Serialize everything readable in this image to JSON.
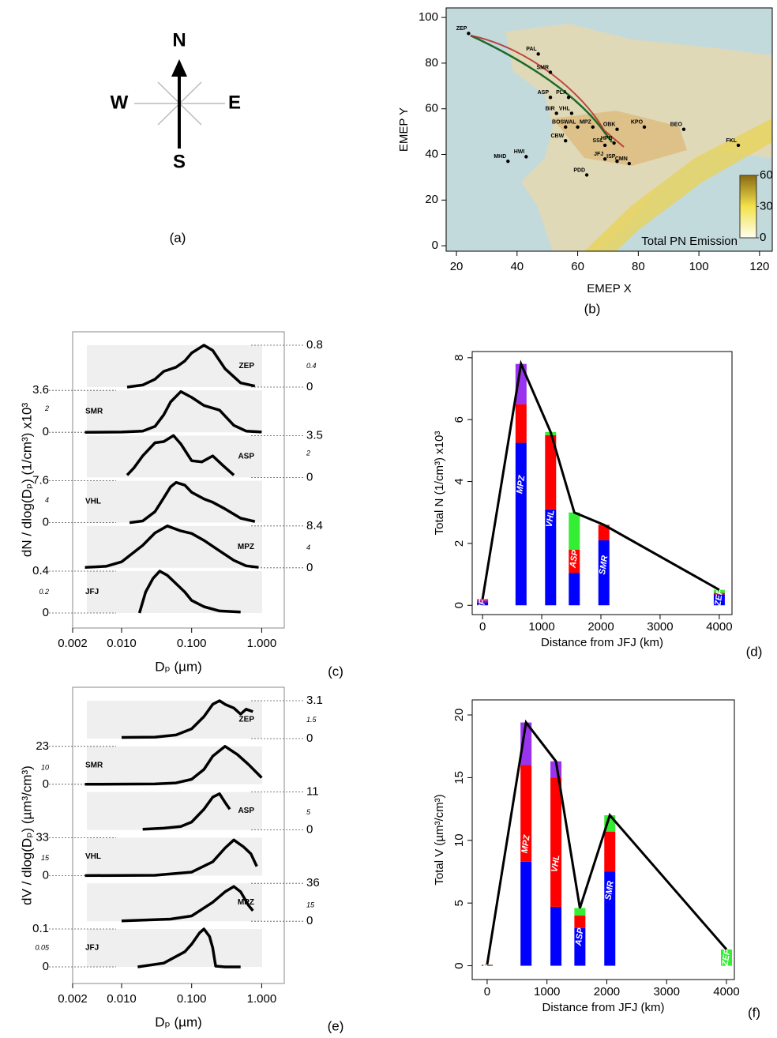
{
  "compass": {
    "north": "N",
    "south": "S",
    "west": "W",
    "east": "E"
  },
  "panel_labels": [
    "(a)",
    "(b)",
    "(c)",
    "(d)",
    "(e)",
    "(f)"
  ],
  "chart_data": [
    {
      "type": "scatter",
      "xlabel": "EMEP X",
      "ylabel": "EMEP Y",
      "xlim": [
        16.6,
        124.2
      ],
      "ylim": [
        -2.4,
        104.2
      ],
      "xticks": [
        20,
        40,
        60,
        80,
        100,
        120
      ],
      "yticks": [
        0,
        20,
        40,
        60,
        80,
        100
      ],
      "point_labels": [
        "ZEP",
        "PAL",
        "SMR",
        "ASP",
        "PLA",
        "BIR",
        "VHL",
        "BOS",
        "WAL",
        "MPZ",
        "OBK",
        "KPO",
        "BEO",
        "CBW",
        "SSL",
        "HPB",
        "JFJ",
        "ISP",
        "CMN",
        "PDD",
        "HWI",
        "MHD",
        "FKL"
      ],
      "x": [
        24,
        47,
        51,
        51,
        57,
        53,
        58,
        56,
        60,
        65,
        73,
        82,
        95,
        56,
        69,
        72,
        69,
        73,
        77,
        63,
        43,
        37,
        113
      ],
      "values": [
        93,
        84,
        76,
        65,
        65,
        58,
        58,
        52,
        52,
        52,
        51,
        52,
        51,
        46,
        44,
        45,
        38,
        37,
        36,
        31,
        39,
        37,
        44
      ],
      "colorbar": {
        "label": "Total PN Emission",
        "lim": [
          0,
          60
        ],
        "ticks": [
          0,
          30,
          60
        ]
      }
    },
    {
      "type": "ridge",
      "xlabel": "Dₚ (µm)",
      "ylabel": "dN / dlog(Dₚ)   (1/cm³) x10³",
      "xlim": [
        0.002,
        2.1
      ],
      "xticks": [
        0.002,
        {
          "value": 0.01,
          "label": "0.010"
        },
        {
          "value": 0.1,
          "label": "0.100"
        },
        {
          "value": 1,
          "label": "1.000"
        }
      ],
      "panels": [
        {
          "name": "ZEP",
          "side": "right",
          "ylim": [
            0,
            0.8
          ],
          "yticks": [
            0,
            0.4,
            0.8
          ],
          "x": [
            0.012,
            0.02,
            0.03,
            0.04,
            0.06,
            0.08,
            0.1,
            0.15,
            0.2,
            0.3,
            0.5,
            0.8
          ],
          "values": [
            0,
            0.04,
            0.15,
            0.3,
            0.38,
            0.5,
            0.65,
            0.8,
            0.7,
            0.35,
            0.08,
            0.02
          ]
        },
        {
          "name": "SMR",
          "side": "left",
          "ylim": [
            0,
            3.6
          ],
          "yticks": [
            0,
            2,
            3.6
          ],
          "x": [
            0.003,
            0.01,
            0.02,
            0.03,
            0.04,
            0.05,
            0.07,
            0.1,
            0.15,
            0.25,
            0.4,
            0.6,
            1.0
          ],
          "values": [
            0,
            0.02,
            0.1,
            0.5,
            1.5,
            2.6,
            3.5,
            3.0,
            2.3,
            1.9,
            0.6,
            0.1,
            0.02
          ]
        },
        {
          "name": "ASP",
          "side": "right",
          "ylim": [
            0,
            3.5
          ],
          "yticks": [
            0,
            2,
            3.5
          ],
          "x": [
            0.012,
            0.015,
            0.02,
            0.03,
            0.04,
            0.055,
            0.07,
            0.1,
            0.14,
            0.2,
            0.28,
            0.4
          ],
          "values": [
            0.2,
            0.8,
            1.8,
            2.9,
            3.0,
            3.5,
            2.8,
            1.4,
            1.3,
            1.8,
            1.0,
            0.2
          ]
        },
        {
          "name": "VHL",
          "side": "left",
          "ylim": [
            0,
            7.6
          ],
          "yticks": [
            0,
            4,
            7.6
          ],
          "x": [
            0.013,
            0.02,
            0.03,
            0.04,
            0.05,
            0.06,
            0.08,
            0.1,
            0.15,
            0.2,
            0.3,
            0.5,
            0.8
          ],
          "values": [
            0,
            0.3,
            2,
            4.5,
            6.5,
            7.3,
            6.8,
            5.5,
            4.3,
            3.7,
            2.5,
            0.8,
            0.2
          ]
        },
        {
          "name": "MPZ",
          "side": "right",
          "ylim": [
            0,
            8.4
          ],
          "yticks": [
            0,
            4,
            8.4
          ],
          "x": [
            0.003,
            0.006,
            0.01,
            0.02,
            0.03,
            0.045,
            0.07,
            0.1,
            0.15,
            0.25,
            0.4,
            0.6,
            0.9
          ],
          "values": [
            0.1,
            0.3,
            1.2,
            4.5,
            7,
            8.4,
            7.4,
            6.9,
            5.5,
            3.4,
            1.5,
            0.4,
            0.1
          ]
        },
        {
          "name": "JFJ",
          "side": "left",
          "ylim": [
            0,
            0.4
          ],
          "yticks": [
            0,
            0.2,
            0.4
          ],
          "x": [
            0.018,
            0.022,
            0.028,
            0.035,
            0.045,
            0.06,
            0.08,
            0.1,
            0.15,
            0.25,
            0.5
          ],
          "values": [
            0,
            0.2,
            0.33,
            0.4,
            0.36,
            0.28,
            0.2,
            0.12,
            0.06,
            0.02,
            0.01
          ]
        }
      ]
    },
    {
      "type": "bar",
      "xlabel": "Distance from JFJ (km)",
      "ylabel": "Total N   (1/cm³) x10³",
      "xlim": [
        -175,
        4215
      ],
      "ylim": [
        -0.3,
        8.2
      ],
      "xticks": [
        0,
        1000,
        2000,
        3000,
        4000
      ],
      "yticks": [
        0,
        2,
        4,
        6,
        8
      ],
      "categories": [
        "JFJ",
        "MPZ",
        "VHL",
        "ASP",
        "SMR",
        "ZEP"
      ],
      "x": [
        0,
        650,
        1150,
        1550,
        2050,
        4000
      ],
      "series": [
        {
          "color": "#0000ff",
          "values": [
            0.1,
            5.25,
            3.1,
            1.05,
            2.1,
            0.35
          ]
        },
        {
          "color": "#ff0000",
          "values": [
            0.05,
            1.25,
            2.4,
            0.75,
            0.5,
            0.05
          ]
        },
        {
          "color": "#33ee33",
          "values": [
            0,
            0,
            0.1,
            1.2,
            0,
            0.1
          ]
        },
        {
          "color": "#9933ee",
          "values": [
            0.05,
            1.3,
            0,
            0,
            0,
            0
          ]
        }
      ]
    },
    {
      "type": "ridge",
      "xlabel": "Dₚ (µm)",
      "ylabel": "dV / dlog(Dₚ) (µm³/cm³)",
      "xlim": [
        0.002,
        2.1
      ],
      "xticks": [
        0.002,
        {
          "value": 0.01,
          "label": "0.010"
        },
        {
          "value": 0.1,
          "label": "0.100"
        },
        {
          "value": 1,
          "label": "1.000"
        }
      ],
      "panels": [
        {
          "name": "ZEP",
          "side": "right",
          "ylim": [
            0,
            3.1
          ],
          "yticks": [
            0,
            1.5,
            3.1
          ],
          "x": [
            0.01,
            0.03,
            0.06,
            0.1,
            0.15,
            0.2,
            0.25,
            0.3,
            0.4,
            0.5,
            0.6,
            0.75
          ],
          "values": [
            0.1,
            0.12,
            0.3,
            0.8,
            1.8,
            2.8,
            3.1,
            2.8,
            2.5,
            2.0,
            2.4,
            2.2
          ]
        },
        {
          "name": "SMR",
          "side": "left",
          "ylim": [
            0,
            23
          ],
          "yticks": [
            0,
            10,
            23
          ],
          "x": [
            0.003,
            0.03,
            0.06,
            0.1,
            0.15,
            0.2,
            0.3,
            0.45,
            0.65,
            1.0
          ],
          "values": [
            0,
            0.2,
            0.8,
            3,
            9,
            17,
            23,
            18,
            12,
            4
          ]
        },
        {
          "name": "ASP",
          "side": "right",
          "ylim": [
            0,
            11
          ],
          "yticks": [
            0,
            5,
            11
          ],
          "x": [
            0.02,
            0.04,
            0.07,
            0.1,
            0.15,
            0.2,
            0.25,
            0.3,
            0.35
          ],
          "values": [
            0.2,
            0.5,
            1,
            2.3,
            6,
            9.5,
            10.5,
            8,
            6
          ]
        },
        {
          "name": "VHL",
          "side": "left",
          "ylim": [
            0,
            33
          ],
          "yticks": [
            0,
            15,
            33
          ],
          "x": [
            0.003,
            0.03,
            0.1,
            0.2,
            0.3,
            0.4,
            0.55,
            0.7,
            0.85
          ],
          "values": [
            0,
            0.3,
            3,
            12,
            24,
            31,
            25,
            19,
            8
          ]
        },
        {
          "name": "MPZ",
          "side": "right",
          "ylim": [
            0,
            36
          ],
          "yticks": [
            0,
            15,
            36
          ],
          "x": [
            0.01,
            0.05,
            0.1,
            0.2,
            0.3,
            0.4,
            0.5,
            0.65,
            0.75
          ],
          "values": [
            0.3,
            2,
            5,
            18,
            28,
            33,
            28,
            15,
            10
          ]
        },
        {
          "name": "JFJ",
          "side": "left",
          "ylim": [
            0,
            0.1
          ],
          "yticks": [
            0,
            0.05,
            0.1
          ],
          "x": [
            0.017,
            0.04,
            0.08,
            0.1,
            0.13,
            0.15,
            0.18,
            0.2,
            0.22,
            0.3,
            0.5
          ],
          "values": [
            0,
            0.01,
            0.04,
            0.06,
            0.09,
            0.1,
            0.08,
            0.05,
            0.002,
            0,
            0
          ]
        }
      ]
    },
    {
      "type": "bar",
      "xlabel": "Distance from JFJ (km)",
      "ylabel": "Total V   (µm³/cm³)",
      "xlim": [
        -250,
        4132
      ],
      "ylim": [
        -1.1,
        21.2
      ],
      "xticks": [
        0,
        1000,
        2000,
        3000,
        4000
      ],
      "yticks": [
        0,
        5,
        10,
        15,
        20
      ],
      "categories": [
        "JFJ",
        "MPZ",
        "VHL",
        "ASP",
        "SMR",
        "ZEP"
      ],
      "x": [
        0,
        650,
        1150,
        1550,
        2050,
        4000
      ],
      "series": [
        {
          "color": "#0000ff",
          "values": [
            0.05,
            8.3,
            4.7,
            3.0,
            7.5,
            0
          ]
        },
        {
          "color": "#ff0000",
          "values": [
            0.03,
            7.7,
            10.3,
            1.0,
            3.2,
            0
          ]
        },
        {
          "color": "#33ee33",
          "values": [
            0.02,
            0,
            0,
            0.6,
            1.3,
            1.3
          ]
        },
        {
          "color": "#9933ee",
          "values": [
            0,
            3.4,
            1.3,
            0,
            0,
            0
          ]
        }
      ]
    }
  ]
}
